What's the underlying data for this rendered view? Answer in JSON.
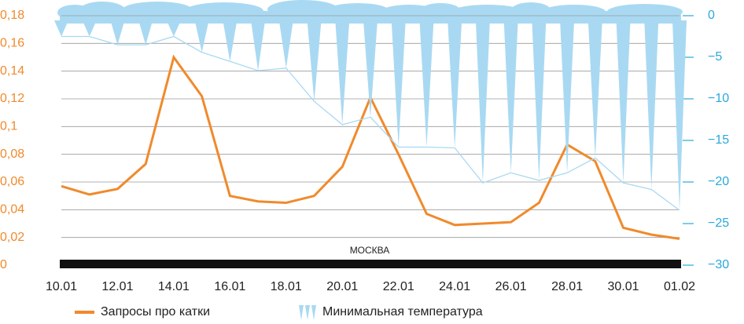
{
  "chart_data": {
    "type": "line",
    "categories": [
      "10.01",
      null,
      "12.01",
      null,
      "14.01",
      null,
      "16.01",
      null,
      "18.01",
      null,
      "20.01",
      null,
      "22.01",
      null,
      "24.01",
      null,
      "26.01",
      null,
      "28.01",
      null,
      "30.01",
      null,
      "01.02"
    ],
    "series": [
      {
        "name": "Запросы про катки",
        "color": "#f08a2c",
        "axis": "y",
        "values": [
          0.057,
          0.051,
          0.055,
          0.073,
          0.15,
          0.122,
          0.05,
          0.046,
          0.045,
          0.05,
          0.071,
          0.121,
          0.08,
          0.037,
          0.029,
          0.03,
          0.031,
          0.045,
          0.087,
          0.075,
          0.027,
          0.022,
          0.019
        ]
      },
      {
        "name": "Минимальная температура",
        "color": "#a9d9f2",
        "axis": "y2",
        "values": [
          -2.5,
          -2.5,
          -3.5,
          -3.5,
          -2.5,
          -4.4,
          -5.5,
          -6.6,
          -6.3,
          -10.3,
          -13.1,
          -12.2,
          -15.8,
          -15.8,
          -15.9,
          -20.1,
          -18.9,
          -19.8,
          -18.9,
          -17.1,
          -20.1,
          -20.9,
          -23.4
        ]
      }
    ],
    "ylim": [
      0,
      0.18
    ],
    "yticks": [
      0,
      {
        "value": 0.02,
        "label": "0,02"
      },
      {
        "value": 0.04,
        "label": "0,04"
      },
      {
        "value": 0.06,
        "label": "0,06"
      },
      {
        "value": 0.08,
        "label": "0,08"
      },
      {
        "value": 0.1,
        "label": "0,1"
      },
      {
        "value": 0.12,
        "label": "0,12"
      },
      {
        "value": 0.14,
        "label": "0,14"
      },
      {
        "value": 0.16,
        "label": "0,16"
      },
      {
        "value": 0.18,
        "label": "0,18"
      }
    ],
    "y2lim": [
      -30,
      0
    ],
    "y2ticks": [
      {
        "value": -30,
        "label": "−30"
      },
      {
        "value": -25,
        "label": "−25"
      },
      {
        "value": -20,
        "label": "−20"
      },
      {
        "value": -15,
        "label": "−15"
      },
      {
        "value": -10,
        "label": "−10"
      },
      {
        "value": -5,
        "label": "−5"
      },
      0
    ],
    "annotation": "МОСКВА",
    "grid": true,
    "legend": "bottom"
  }
}
